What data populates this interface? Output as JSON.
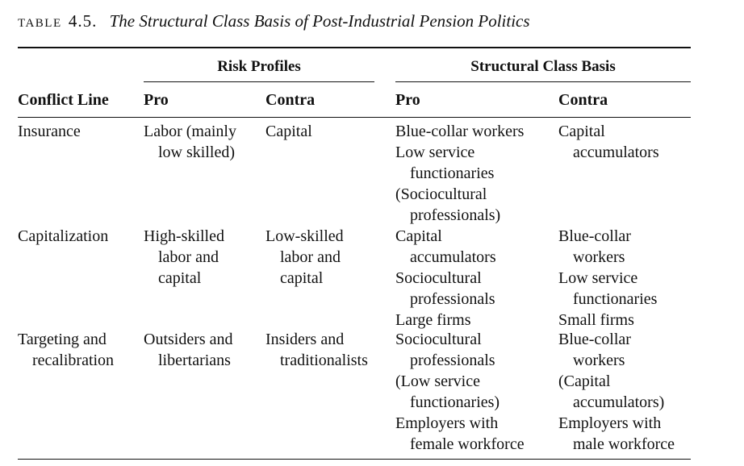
{
  "caption": {
    "label": "TABLE",
    "number": "4.5.",
    "title": "The Structural Class Basis of Post-Industrial Pension Politics"
  },
  "header": {
    "groups": {
      "risk": "Risk Profiles",
      "structural": "Structural Class Basis"
    },
    "columns": {
      "conflict": "Conflict Line",
      "risk_pro": "Pro",
      "risk_contra": "Contra",
      "struct_pro": "Pro",
      "struct_contra": "Contra"
    }
  },
  "rows": [
    {
      "conflict": [
        "Insurance"
      ],
      "risk_pro": [
        "Labor (mainly",
        "low skilled)"
      ],
      "risk_contra": [
        "Capital"
      ],
      "struct_pro": [
        "Blue-collar workers",
        "Low service",
        "functionaries",
        "(Sociocultural",
        "professionals)"
      ],
      "struct_contra": [
        "Capital",
        "accumulators"
      ]
    },
    {
      "conflict": [
        "Capitalization"
      ],
      "risk_pro": [
        "High-skilled",
        "labor and",
        "capital"
      ],
      "risk_contra": [
        "Low-skilled",
        "labor and",
        "capital"
      ],
      "struct_pro": [
        "Capital",
        "accumulators",
        "Sociocultural",
        "professionals",
        "Large firms"
      ],
      "struct_contra": [
        "Blue-collar",
        "workers",
        "Low service",
        "functionaries",
        "Small firms"
      ]
    },
    {
      "conflict": [
        "Targeting and",
        "recalibration"
      ],
      "risk_pro": [
        "Outsiders and",
        "libertarians"
      ],
      "risk_contra": [
        "Insiders and",
        "traditionalists"
      ],
      "struct_pro": [
        "Sociocultural",
        "professionals",
        "(Low service",
        "functionaries)",
        "Employers with",
        "female workforce"
      ],
      "struct_contra": [
        "Blue-collar",
        "workers",
        "(Capital",
        "accumulators)",
        "Employers with",
        "male workforce"
      ]
    }
  ]
}
